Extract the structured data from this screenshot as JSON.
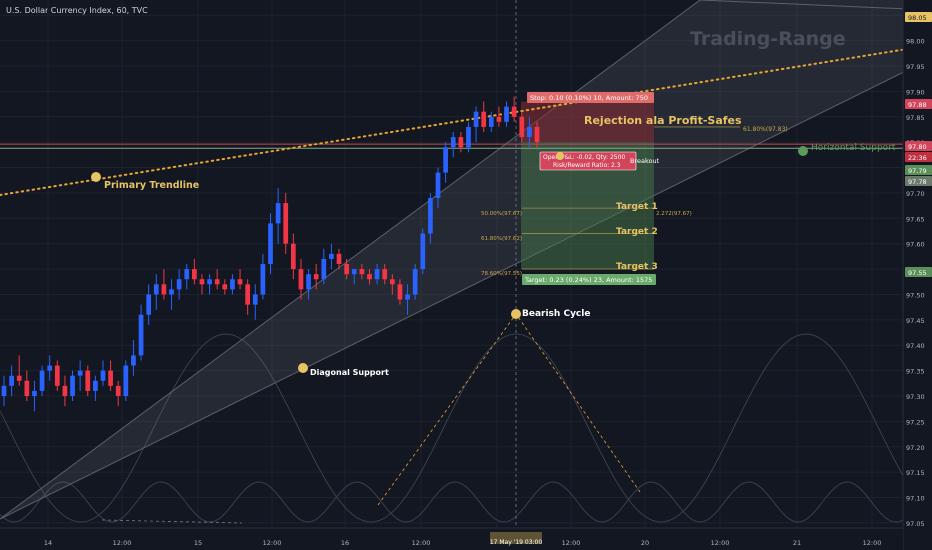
{
  "header": {
    "symbol_title": "U.S. Dollar Currency Index, 60, TVC"
  },
  "colors": {
    "background": "#131722",
    "grid": "#1e222d",
    "up": "#2962ff",
    "down": "#f23645",
    "wick": "#9598a1",
    "accent": "#e8c364",
    "profit_zone": "#4a7a4a",
    "loss_zone": "#8b2e35",
    "support_green": "#7fae7f"
  },
  "chart_data": {
    "type": "candlestick",
    "title": "U.S. Dollar Currency Index, 60, TVC",
    "ylim": [
      97.04,
      98.08
    ],
    "y_ticks": [
      "98.05",
      "98.00",
      "97.95",
      "97.90",
      "97.85",
      "97.80",
      "97.75",
      "97.70",
      "97.65",
      "97.60",
      "97.55",
      "97.50",
      "97.45",
      "97.40",
      "97.35",
      "97.30",
      "97.25",
      "97.20",
      "97.15",
      "97.10",
      "97.05"
    ],
    "x_ticks": [
      "14",
      "12:00",
      "15",
      "12:00",
      "16",
      "12:00",
      "12:00",
      "20",
      "12:00",
      "21",
      "12:00"
    ],
    "crosshair_x_label": "17 May '19  03:00",
    "ohlc": [
      [
        97.3,
        97.34,
        97.28,
        97.32
      ],
      [
        97.32,
        97.36,
        97.3,
        97.34
      ],
      [
        97.34,
        97.38,
        97.32,
        97.33
      ],
      [
        97.33,
        97.35,
        97.29,
        97.3
      ],
      [
        97.3,
        97.33,
        97.27,
        97.31
      ],
      [
        97.31,
        97.36,
        97.3,
        97.35
      ],
      [
        97.35,
        97.38,
        97.33,
        97.36
      ],
      [
        97.36,
        97.37,
        97.31,
        97.32
      ],
      [
        97.32,
        97.34,
        97.28,
        97.3
      ],
      [
        97.3,
        97.35,
        97.29,
        97.34
      ],
      [
        97.34,
        97.37,
        97.31,
        97.35
      ],
      [
        97.35,
        97.36,
        97.3,
        97.31
      ],
      [
        97.31,
        97.34,
        97.29,
        97.33
      ],
      [
        97.33,
        97.37,
        97.32,
        97.35
      ],
      [
        97.35,
        97.37,
        97.31,
        97.32
      ],
      [
        97.32,
        97.33,
        97.28,
        97.3
      ],
      [
        97.3,
        97.37,
        97.29,
        97.36
      ],
      [
        97.36,
        97.41,
        97.34,
        97.38
      ],
      [
        97.38,
        97.48,
        97.37,
        97.46
      ],
      [
        97.46,
        97.52,
        97.44,
        97.5
      ],
      [
        97.5,
        97.54,
        97.47,
        97.52
      ],
      [
        97.52,
        97.55,
        97.49,
        97.5
      ],
      [
        97.5,
        97.53,
        97.47,
        97.51
      ],
      [
        97.51,
        97.55,
        97.49,
        97.53
      ],
      [
        97.53,
        97.56,
        97.51,
        97.55
      ],
      [
        97.55,
        97.57,
        97.52,
        97.53
      ],
      [
        97.53,
        97.54,
        97.5,
        97.52
      ],
      [
        97.52,
        97.54,
        97.5,
        97.53
      ],
      [
        97.53,
        97.55,
        97.51,
        97.52
      ],
      [
        97.52,
        97.53,
        97.5,
        97.51
      ],
      [
        97.51,
        97.54,
        97.5,
        97.53
      ],
      [
        97.53,
        97.55,
        97.51,
        97.52
      ],
      [
        97.52,
        97.53,
        97.46,
        97.48
      ],
      [
        97.48,
        97.52,
        97.45,
        97.5
      ],
      [
        97.5,
        97.58,
        97.49,
        97.56
      ],
      [
        97.56,
        97.66,
        97.54,
        97.64
      ],
      [
        97.64,
        97.71,
        97.6,
        97.68
      ],
      [
        97.68,
        97.7,
        97.58,
        97.6
      ],
      [
        97.6,
        97.62,
        97.53,
        97.55
      ],
      [
        97.55,
        97.57,
        97.49,
        97.51
      ],
      [
        97.51,
        97.55,
        97.49,
        97.54
      ],
      [
        97.54,
        97.56,
        97.51,
        97.53
      ],
      [
        97.53,
        97.59,
        97.52,
        97.57
      ],
      [
        97.57,
        97.6,
        97.55,
        97.58
      ],
      [
        97.58,
        97.59,
        97.55,
        97.56
      ],
      [
        97.56,
        97.57,
        97.53,
        97.54
      ],
      [
        97.54,
        97.55,
        97.52,
        97.55
      ],
      [
        97.55,
        97.56,
        97.53,
        97.54
      ],
      [
        97.54,
        97.55,
        97.52,
        97.53
      ],
      [
        97.53,
        97.56,
        97.52,
        97.55
      ],
      [
        97.55,
        97.56,
        97.52,
        97.53
      ],
      [
        97.53,
        97.54,
        97.5,
        97.52
      ],
      [
        97.52,
        97.53,
        97.48,
        97.49
      ],
      [
        97.49,
        97.52,
        97.46,
        97.5
      ],
      [
        97.5,
        97.56,
        97.49,
        97.55
      ],
      [
        97.55,
        97.63,
        97.54,
        97.62
      ],
      [
        97.62,
        97.7,
        97.6,
        97.69
      ],
      [
        97.69,
        97.75,
        97.67,
        97.74
      ],
      [
        97.74,
        97.8,
        97.72,
        97.79
      ],
      [
        97.79,
        97.82,
        97.77,
        97.81
      ],
      [
        97.81,
        97.82,
        97.78,
        97.79
      ],
      [
        97.79,
        97.84,
        97.78,
        97.83
      ],
      [
        97.83,
        97.87,
        97.8,
        97.86
      ],
      [
        97.86,
        97.88,
        97.82,
        97.83
      ],
      [
        97.83,
        97.86,
        97.82,
        97.85
      ],
      [
        97.85,
        97.87,
        97.83,
        97.84
      ],
      [
        97.84,
        97.88,
        97.83,
        97.87
      ],
      [
        97.87,
        97.89,
        97.84,
        97.85
      ],
      [
        97.85,
        97.86,
        97.8,
        97.81
      ],
      [
        97.81,
        97.85,
        97.79,
        97.83
      ],
      [
        97.83,
        97.84,
        97.79,
        97.8
      ]
    ],
    "price_tags": [
      "98.05",
      "97.88",
      "97.80",
      "22:36",
      "97.79",
      "97.78",
      "97.55"
    ],
    "annotations": {
      "trading_range": "Trading-Range",
      "rejection": "Rejection ala Profit-Safes",
      "horizontal_support": "Horizontal Support",
      "primary_trendline": "Primary Trendline",
      "diagonal_support": "Diagonal Support",
      "bearish_cycle": "Bearish Cycle",
      "target1": "Target 1",
      "target2": "Target 2",
      "target3": "Target 3",
      "fib_618_top": "61.80%(97.83)",
      "fib_50": "50.00%(97.67)",
      "fib_2272": "2.272(97.67)",
      "fib_618": "61.80%(97.62)",
      "fib_786": "78.60%(97.55)",
      "stop_label": "Stop: 0.10 (0.10%) 10, Amount: 750",
      "target_label": "Target: 0.23 (0.24%) 23, Amount: 1575",
      "open_pl": "Open P&L: -0.02, Qty: 2500",
      "risk_reward": "Risk/Reward Ratio: 2.3",
      "breakout": "Breakout"
    }
  }
}
